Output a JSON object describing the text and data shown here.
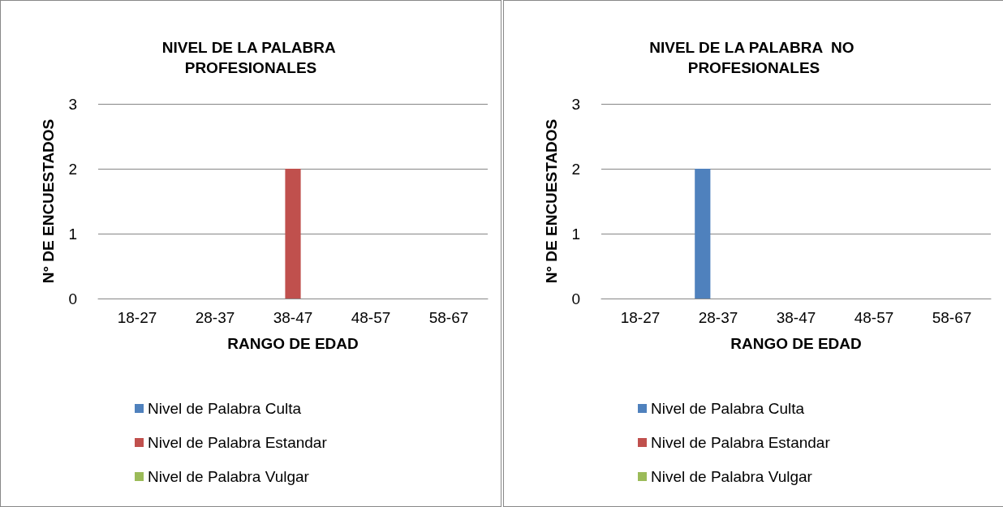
{
  "chart_data": [
    {
      "type": "bar",
      "title": "NIVEL DE LA PALABRA PROFESIONALES",
      "xlabel": "RANGO DE EDAD",
      "ylabel": "N° DE ENCUESTADOS",
      "categories": [
        "18-27",
        "28-37",
        "38-47",
        "48-57",
        "58-67"
      ],
      "series": [
        {
          "name": "Nivel de Palabra Culta",
          "color": "#4f81bd",
          "values": [
            0,
            0,
            0,
            0,
            0
          ]
        },
        {
          "name": "Nivel de Palabra Estandar",
          "color": "#c0504d",
          "values": [
            0,
            0,
            2,
            0,
            0
          ]
        },
        {
          "name": "Nivel de Palabra Vulgar",
          "color": "#9bbb59",
          "values": [
            0,
            0,
            0,
            0,
            0
          ]
        }
      ],
      "ylim": [
        0,
        3
      ],
      "yticks": [
        0,
        1,
        2,
        3
      ],
      "grid": "y",
      "legend": "bottom"
    },
    {
      "type": "bar",
      "title": "NIVEL DE LA PALABRA  NO PROFESIONALES",
      "xlabel": "RANGO DE EDAD",
      "ylabel": "N° DE ENCUESTADOS",
      "categories": [
        "18-27",
        "28-37",
        "38-47",
        "48-57",
        "58-67"
      ],
      "series": [
        {
          "name": "Nivel de Palabra Culta",
          "color": "#4f81bd",
          "values": [
            0,
            2,
            0,
            0,
            0
          ]
        },
        {
          "name": "Nivel de Palabra Estandar",
          "color": "#c0504d",
          "values": [
            0,
            0,
            0,
            0,
            0
          ]
        },
        {
          "name": "Nivel de Palabra Vulgar",
          "color": "#9bbb59",
          "values": [
            0,
            0,
            0,
            0,
            0
          ]
        }
      ],
      "ylim": [
        0,
        3
      ],
      "yticks": [
        0,
        1,
        2,
        3
      ],
      "grid": "y",
      "legend": "bottom"
    }
  ]
}
